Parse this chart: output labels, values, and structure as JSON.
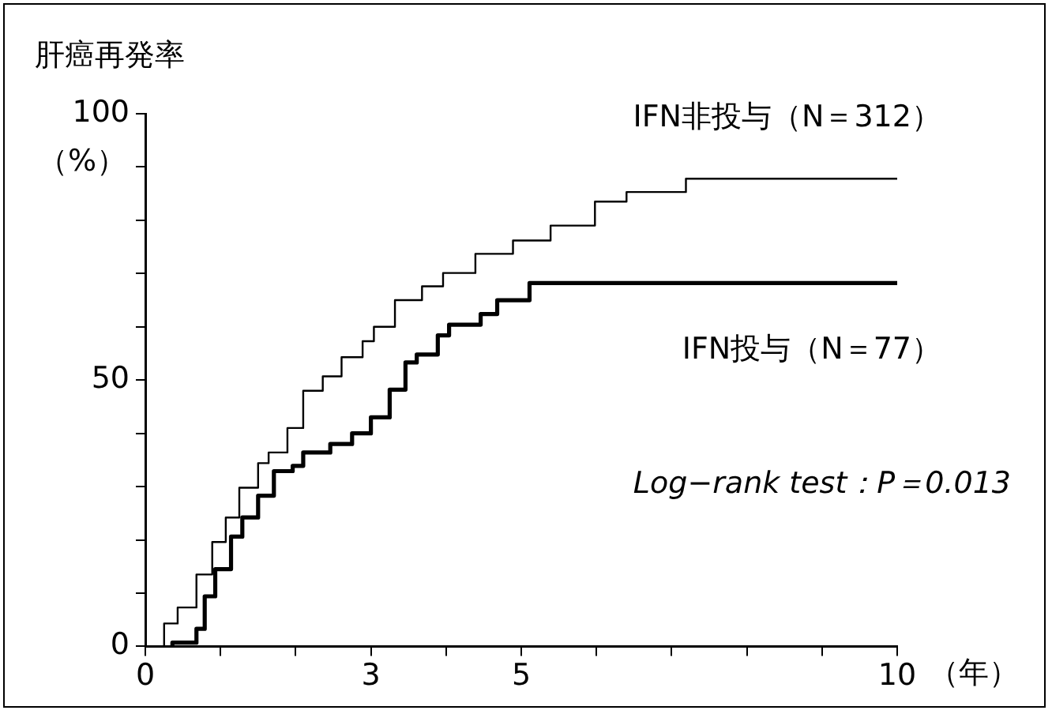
{
  "chart_data": {
    "type": "step",
    "title": "肝癌再発率",
    "ylabel": "（%）",
    "xlabel": "（年）",
    "xlim": [
      0,
      10
    ],
    "ylim": [
      0,
      100
    ],
    "xticks": [
      0,
      {
        "value": 1,
        "label": null
      },
      {
        "value": 2,
        "label": null
      },
      3,
      {
        "value": 4,
        "label": null
      },
      5,
      {
        "value": 6,
        "label": null
      },
      {
        "value": 7,
        "label": null
      },
      {
        "value": 8,
        "label": null
      },
      {
        "value": 9,
        "label": null
      },
      10
    ],
    "yticks": [
      0,
      {
        "value": 10,
        "label": null
      },
      {
        "value": 20,
        "label": null
      },
      {
        "value": 30,
        "label": null
      },
      {
        "value": 40,
        "label": null
      },
      50,
      {
        "value": 60,
        "label": null
      },
      {
        "value": 70,
        "label": null
      },
      {
        "value": 80,
        "label": null
      },
      {
        "value": 90,
        "label": null
      },
      100
    ],
    "grid": false,
    "legend": false,
    "marker": "none",
    "line_style": "solid",
    "series": [
      {
        "name": "IFN非投与（N＝312）",
        "color": "#000000",
        "x": [
          0.25,
          0.43,
          0.68,
          0.89,
          1.07,
          1.25,
          1.5,
          1.64,
          1.89,
          2.1,
          2.36,
          2.61,
          2.89,
          3.04,
          3.32,
          3.68,
          3.96,
          4.39,
          4.89,
          5.39,
          5.98,
          6.4,
          7.19,
          8.32,
          10
        ],
        "values": [
          0,
          4.3,
          7.3,
          13.5,
          19.6,
          24.2,
          29.8,
          34.4,
          36.4,
          41,
          48,
          50.7,
          54.3,
          57.3,
          60,
          65,
          67.6,
          70.1,
          73.7,
          76.2,
          79,
          83.5,
          85.3,
          87.8,
          87.8
        ]
      },
      {
        "name": "IFN投与（N＝77）",
        "color": "#000000",
        "x": [
          0.36,
          0.68,
          0.79,
          0.93,
          1.14,
          1.29,
          1.5,
          1.71,
          1.96,
          2.1,
          2.46,
          2.75,
          3,
          3.25,
          3.46,
          3.61,
          3.89,
          4.04,
          4.46,
          4.68,
          5.11,
          6.02,
          10
        ],
        "values": [
          0,
          0.7,
          3.3,
          9.4,
          14.5,
          20.6,
          24.2,
          28.3,
          32.9,
          33.9,
          36.4,
          38,
          40,
          43,
          48.2,
          53.3,
          54.8,
          58.4,
          60.4,
          62.4,
          65,
          68.2,
          68.2
        ]
      }
    ],
    "annotations": [
      {
        "text": "Log−rank test：P＝0.013"
      }
    ]
  }
}
